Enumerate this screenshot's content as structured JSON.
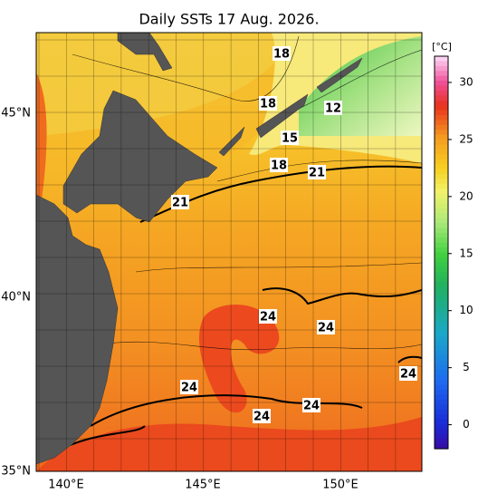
{
  "title": "Daily SSTs 17 Aug. 2026.",
  "latitude_labels": [
    "45°N",
    "40°N",
    "35°N"
  ],
  "longitude_labels": [
    "140°E",
    "145°E",
    "150°E"
  ],
  "colorbar": {
    "unit": "[°C]",
    "range": [
      -2.1,
      32.3
    ],
    "ticks": [
      0,
      5,
      10,
      15,
      20,
      25,
      30
    ]
  },
  "contour_labels": [
    "18",
    "18",
    "12",
    "15",
    "18",
    "21",
    "21",
    "24",
    "24",
    "24",
    "24",
    "24",
    "24"
  ]
}
